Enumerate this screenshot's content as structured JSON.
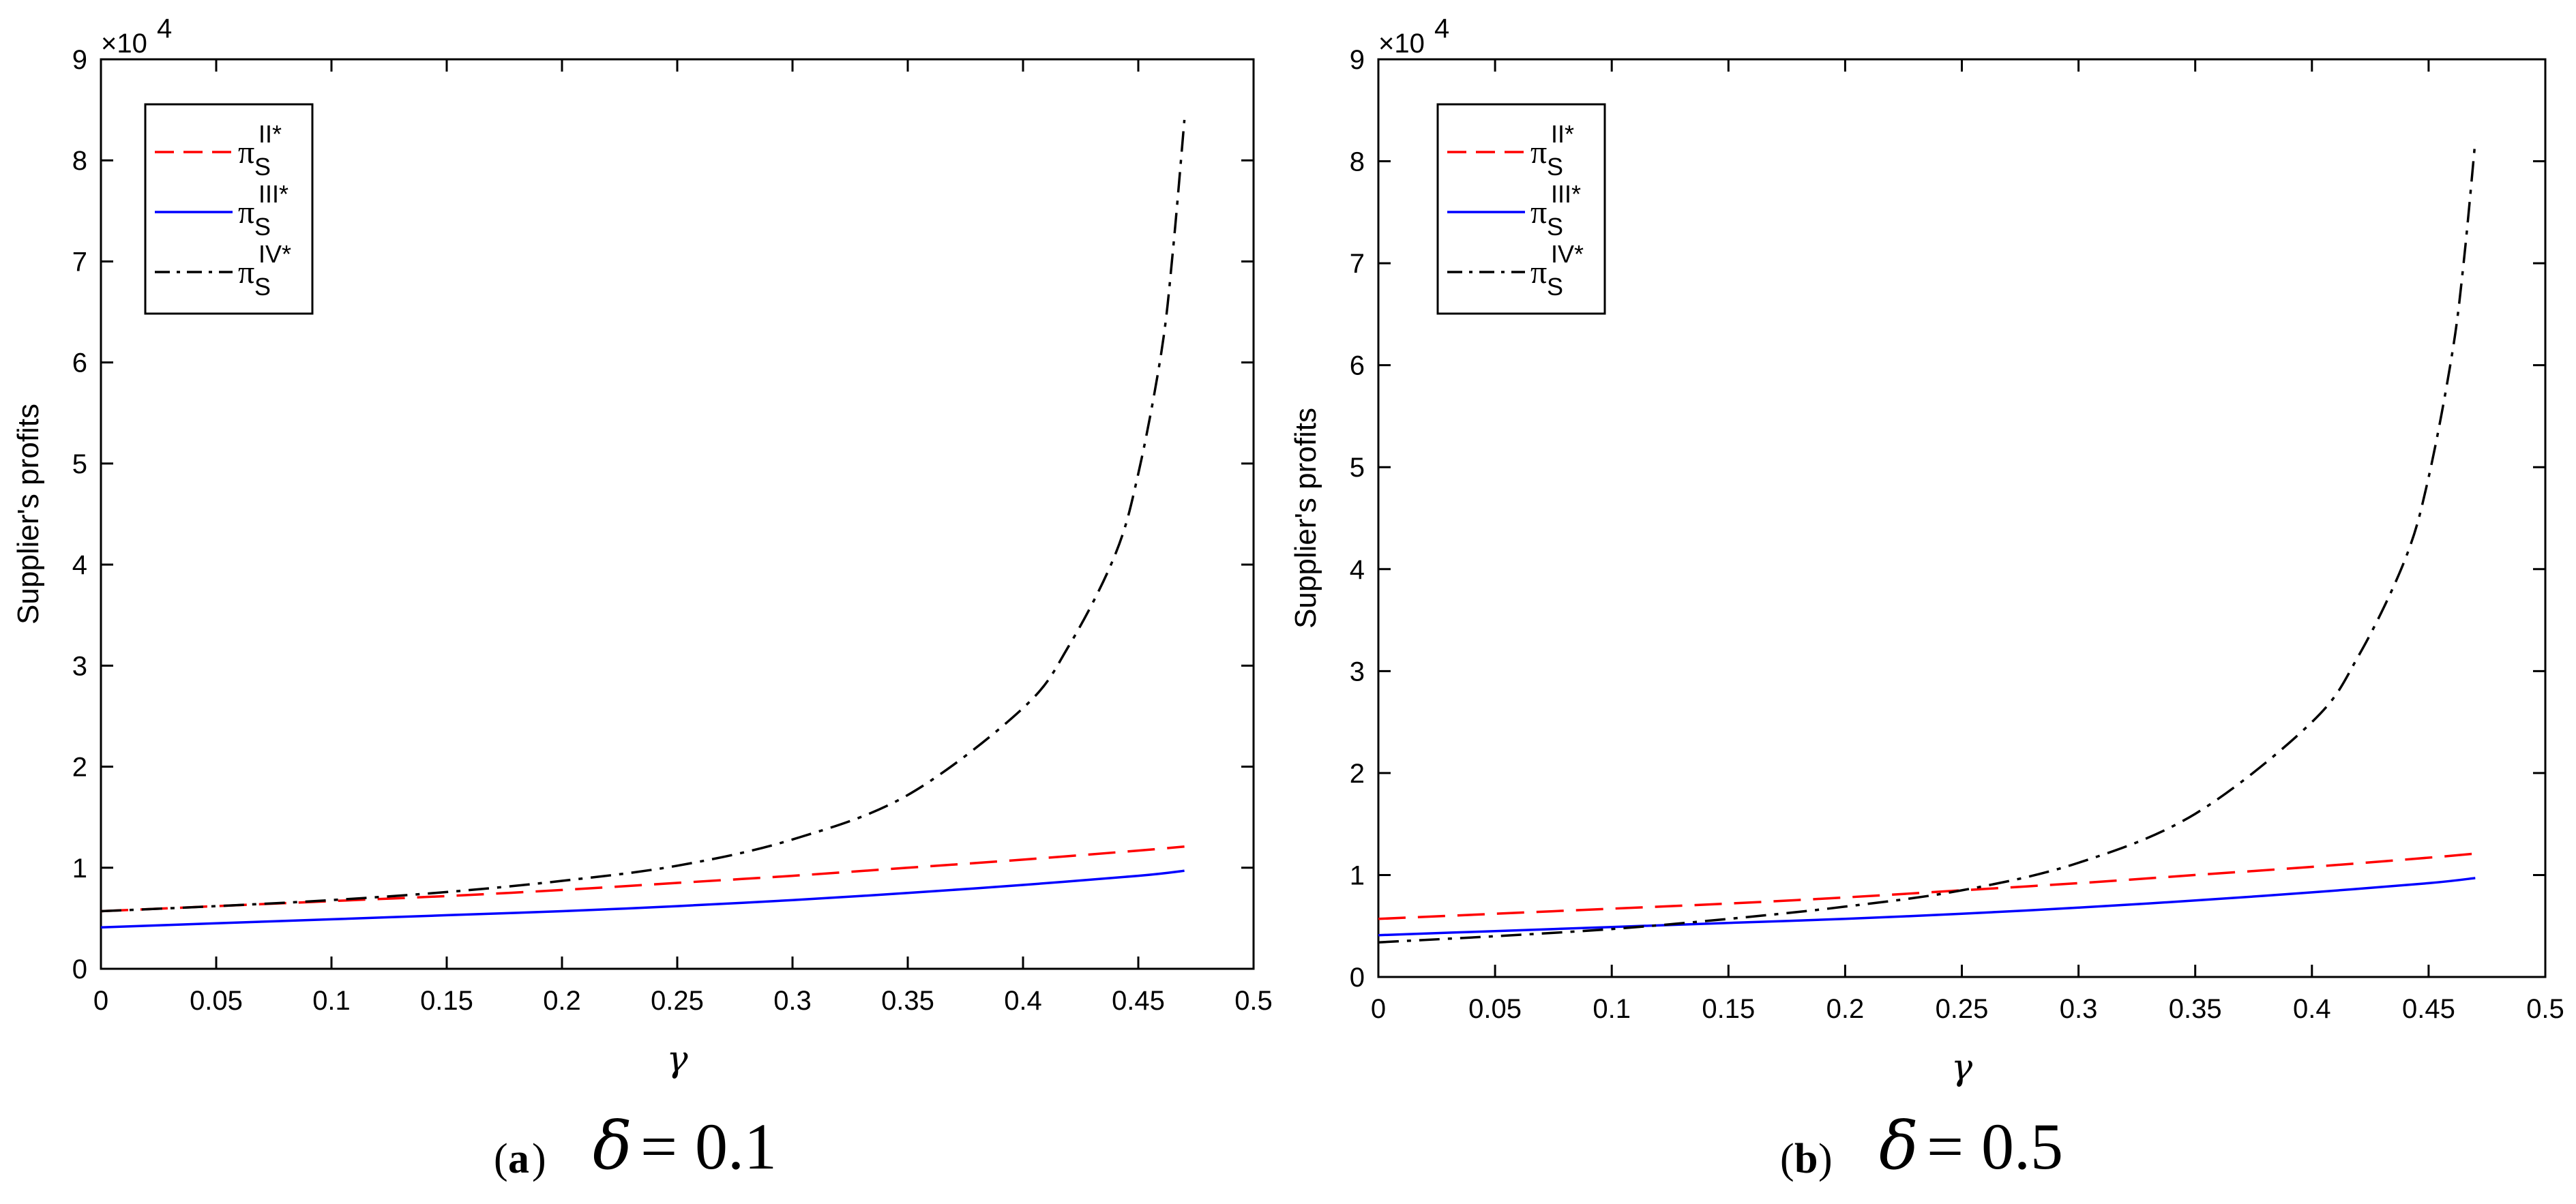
{
  "chart_data": [
    {
      "type": "line",
      "panel": "a",
      "caption": {
        "letter": "a",
        "param": "δ",
        "value": "0.1"
      },
      "xlabel": "γ",
      "ylabel": "Supplier's profits",
      "exponent_label": "×10",
      "exponent_power": "4",
      "xlim": [
        0,
        0.5
      ],
      "ylim": [
        0,
        9
      ],
      "xticks": [
        "0",
        "0.05",
        "0.1",
        "0.15",
        "0.2",
        "0.25",
        "0.3",
        "0.35",
        "0.4",
        "0.45",
        "0.5"
      ],
      "yticks": [
        "0",
        "1",
        "2",
        "3",
        "4",
        "5",
        "6",
        "7",
        "8",
        "9"
      ],
      "legend_position": "top-left",
      "series": [
        {
          "name": "π_S^{II*}",
          "base": "π",
          "sub": "S",
          "sup": "II*",
          "color": "#ff0000",
          "style": "dashed",
          "x": [
            0,
            0.05,
            0.1,
            0.15,
            0.2,
            0.25,
            0.3,
            0.35,
            0.4,
            0.45,
            0.47
          ],
          "values": [
            0.57,
            0.62,
            0.67,
            0.72,
            0.78,
            0.85,
            0.92,
            1.0,
            1.08,
            1.17,
            1.21
          ]
        },
        {
          "name": "π_S^{III*}",
          "base": "π",
          "sub": "S",
          "sup": "III*",
          "color": "#0000ff",
          "style": "solid",
          "x": [
            0,
            0.05,
            0.1,
            0.15,
            0.2,
            0.25,
            0.3,
            0.35,
            0.4,
            0.45,
            0.47
          ],
          "values": [
            0.41,
            0.45,
            0.49,
            0.53,
            0.57,
            0.62,
            0.68,
            0.75,
            0.83,
            0.92,
            0.97
          ]
        },
        {
          "name": "π_S^{IV*}",
          "base": "π",
          "sub": "S",
          "sup": "IV*",
          "color": "#000000",
          "style": "dashdot",
          "x": [
            0,
            0.05,
            0.1,
            0.15,
            0.2,
            0.25,
            0.3,
            0.35,
            0.4,
            0.42,
            0.44,
            0.45,
            0.46,
            0.465,
            0.47
          ],
          "values": [
            0.57,
            0.62,
            0.68,
            0.76,
            0.87,
            1.02,
            1.28,
            1.72,
            2.58,
            3.2,
            4.1,
            4.9,
            6.1,
            7.1,
            8.4
          ]
        }
      ]
    },
    {
      "type": "line",
      "panel": "b",
      "caption": {
        "letter": "b",
        "param": "δ",
        "value": "0.5"
      },
      "xlabel": "γ",
      "ylabel": "Supplier's profits",
      "exponent_label": "×10",
      "exponent_power": "4",
      "xlim": [
        0,
        0.5
      ],
      "ylim": [
        0,
        9
      ],
      "xticks": [
        "0",
        "0.05",
        "0.1",
        "0.15",
        "0.2",
        "0.25",
        "0.3",
        "0.35",
        "0.4",
        "0.45",
        "0.5"
      ],
      "yticks": [
        "0",
        "1",
        "2",
        "3",
        "4",
        "5",
        "6",
        "7",
        "8",
        "9"
      ],
      "legend_position": "top-left",
      "series": [
        {
          "name": "π_S^{II*}",
          "base": "π",
          "sub": "S",
          "sup": "II*",
          "color": "#ff0000",
          "style": "dashed",
          "x": [
            0,
            0.05,
            0.1,
            0.15,
            0.2,
            0.25,
            0.3,
            0.35,
            0.4,
            0.45,
            0.47
          ],
          "values": [
            0.57,
            0.62,
            0.67,
            0.72,
            0.78,
            0.85,
            0.92,
            1.0,
            1.08,
            1.17,
            1.21
          ]
        },
        {
          "name": "π_S^{III*}",
          "base": "π",
          "sub": "S",
          "sup": "III*",
          "color": "#0000ff",
          "style": "solid",
          "x": [
            0,
            0.05,
            0.1,
            0.15,
            0.2,
            0.25,
            0.3,
            0.35,
            0.4,
            0.45,
            0.47
          ],
          "values": [
            0.41,
            0.45,
            0.49,
            0.53,
            0.57,
            0.62,
            0.68,
            0.75,
            0.83,
            0.92,
            0.97
          ]
        },
        {
          "name": "π_S^{IV*}",
          "base": "π",
          "sub": "S",
          "sup": "IV*",
          "color": "#000000",
          "style": "dashdot",
          "x": [
            0,
            0.05,
            0.1,
            0.15,
            0.2,
            0.25,
            0.3,
            0.35,
            0.4,
            0.42,
            0.44,
            0.45,
            0.46,
            0.465,
            0.47
          ],
          "values": [
            0.34,
            0.4,
            0.47,
            0.57,
            0.69,
            0.85,
            1.12,
            1.6,
            2.5,
            3.15,
            4.1,
            4.9,
            6.1,
            7.0,
            8.2
          ]
        }
      ]
    }
  ]
}
